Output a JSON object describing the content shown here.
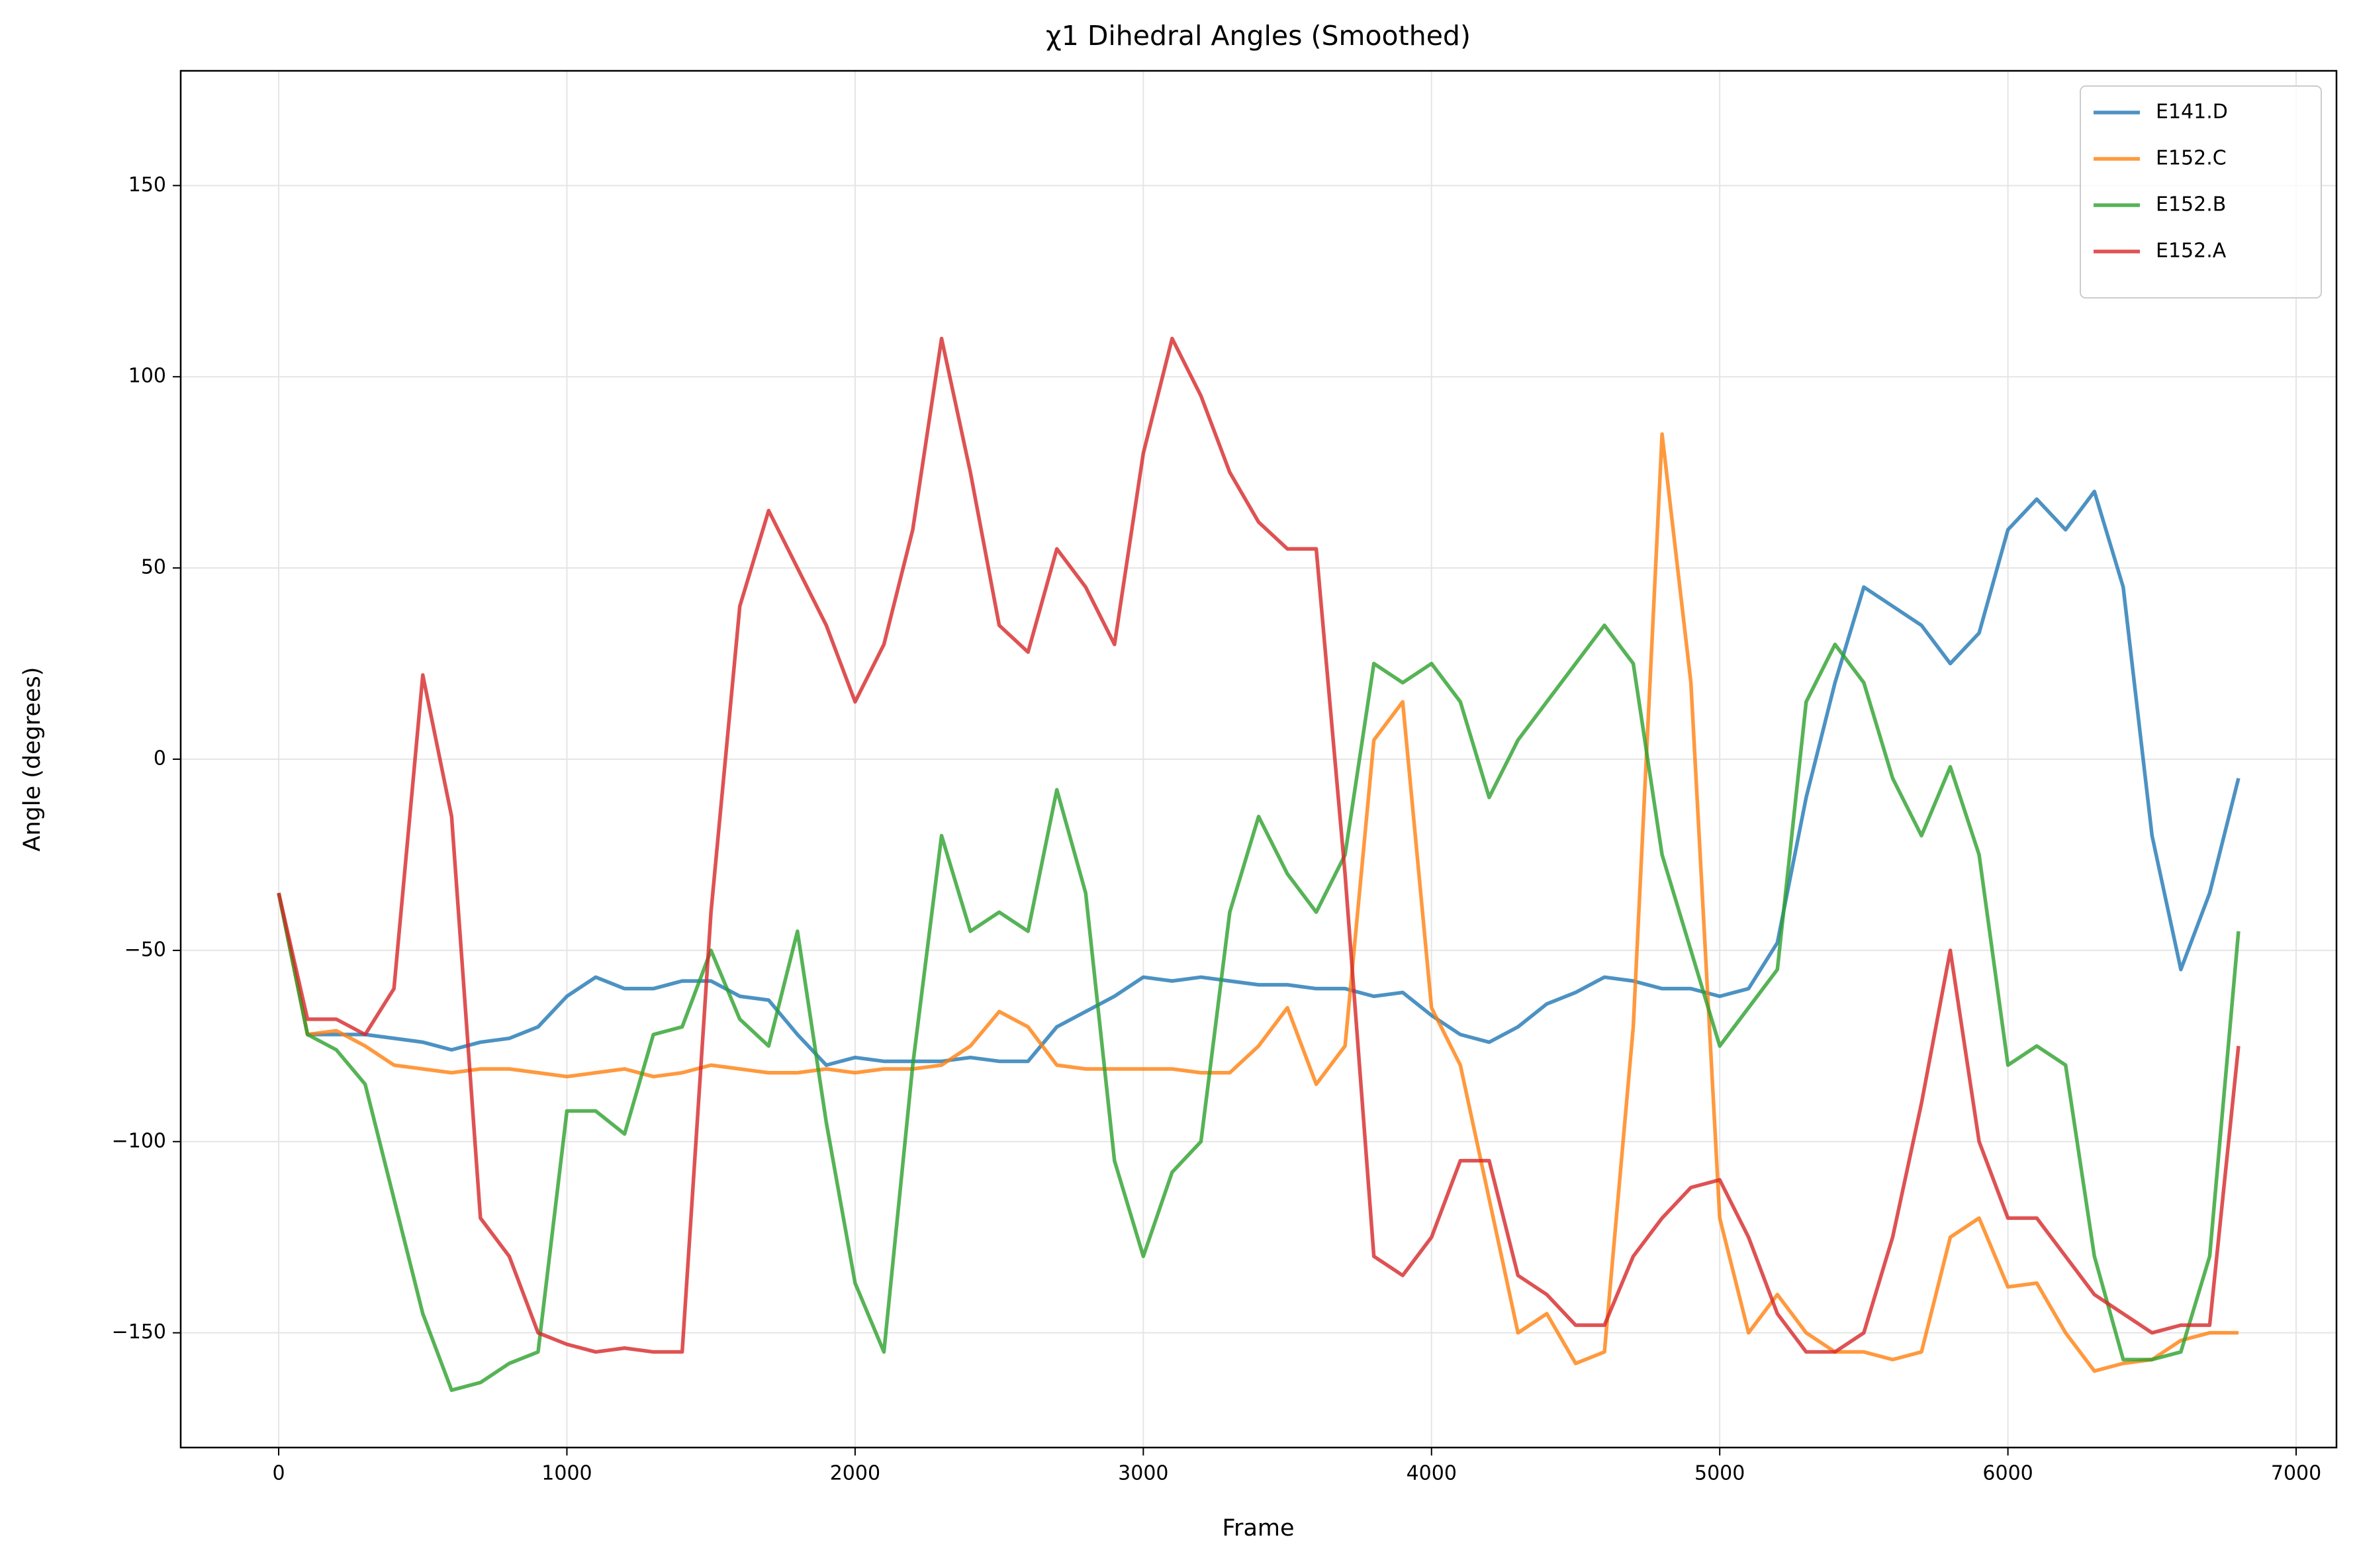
{
  "chart_data": {
    "type": "line",
    "title": "χ1 Dihedral Angles (Smoothed)",
    "x_label": "Frame",
    "y_label": "Angle (degrees)",
    "x": [
      0,
      100,
      200,
      300,
      400,
      500,
      600,
      700,
      800,
      900,
      1000,
      1100,
      1200,
      1300,
      1400,
      1500,
      1600,
      1700,
      1800,
      1900,
      2000,
      2100,
      2200,
      2300,
      2400,
      2500,
      2600,
      2700,
      2800,
      2900,
      3000,
      3100,
      3200,
      3300,
      3400,
      3500,
      3600,
      3700,
      3800,
      3900,
      4000,
      4100,
      4200,
      4300,
      4400,
      4500,
      4600,
      4700,
      4800,
      4900,
      5000,
      5100,
      5200,
      5300,
      5400,
      5500,
      5600,
      5700,
      5800,
      5900,
      6000,
      6100,
      6200,
      6300,
      6400,
      6500,
      6600,
      6700,
      6800
    ],
    "series": [
      {
        "name": "E141.D",
        "color": "#1f77b4",
        "values": [
          -35,
          -72,
          -72,
          -72,
          -73,
          -74,
          -76,
          -74,
          -73,
          -70,
          -62,
          -57,
          -60,
          -60,
          -58,
          -58,
          -62,
          -63,
          -72,
          -80,
          -78,
          -79,
          -79,
          -79,
          -78,
          -79,
          -79,
          -70,
          -66,
          -62,
          -57,
          -58,
          -57,
          -58,
          -59,
          -59,
          -60,
          -60,
          -62,
          -61,
          -67,
          -72,
          -74,
          -70,
          -64,
          -61,
          -57,
          -58,
          -60,
          -60,
          -62,
          -60,
          -48,
          -10,
          20,
          45,
          40,
          35,
          25,
          33,
          60,
          68,
          60,
          70,
          45,
          -20,
          -55,
          -35,
          -5
        ]
      },
      {
        "name": "E152.C",
        "color": "#ff7f0e",
        "values": [
          -35,
          -72,
          -71,
          -75,
          -80,
          -81,
          -82,
          -81,
          -81,
          -82,
          -83,
          -82,
          -81,
          -83,
          -82,
          -80,
          -81,
          -82,
          -82,
          -81,
          -82,
          -81,
          -81,
          -80,
          -75,
          -66,
          -70,
          -80,
          -81,
          -81,
          -81,
          -81,
          -82,
          -82,
          -75,
          -65,
          -85,
          -75,
          5,
          15,
          -65,
          -80,
          -115,
          -150,
          -145,
          -158,
          -155,
          -70,
          85,
          20,
          -120,
          -150,
          -140,
          -150,
          -155,
          -155,
          -157,
          -155,
          -125,
          -120,
          -138,
          -137,
          -150,
          -160,
          -158,
          -157,
          -152,
          -150,
          -150
        ]
      },
      {
        "name": "E152.B",
        "color": "#2ca02c",
        "values": [
          -35,
          -72,
          -76,
          -85,
          -115,
          -145,
          -165,
          -163,
          -158,
          -155,
          -92,
          -92,
          -98,
          -72,
          -70,
          -50,
          -68,
          -75,
          -45,
          -95,
          -137,
          -155,
          -80,
          -20,
          -45,
          -40,
          -45,
          -8,
          -35,
          -105,
          -130,
          -108,
          -100,
          -40,
          -15,
          -30,
          -40,
          -25,
          25,
          20,
          25,
          15,
          -10,
          5,
          15,
          25,
          35,
          25,
          -25,
          -50,
          -75,
          -65,
          -55,
          15,
          30,
          20,
          -5,
          -20,
          -2,
          -25,
          -80,
          -75,
          -80,
          -130,
          -157,
          -157,
          -155,
          -130,
          -45
        ]
      },
      {
        "name": "E152.A",
        "color": "#d62728",
        "values": [
          -35,
          -68,
          -68,
          -72,
          -60,
          22,
          -15,
          -120,
          -130,
          -150,
          -153,
          -155,
          -154,
          -155,
          -155,
          -40,
          40,
          65,
          50,
          35,
          15,
          30,
          60,
          110,
          75,
          35,
          28,
          55,
          45,
          30,
          80,
          110,
          95,
          75,
          62,
          55,
          55,
          -30,
          -130,
          -135,
          -125,
          -105,
          -105,
          -135,
          -140,
          -148,
          -148,
          -130,
          -120,
          -112,
          -110,
          -125,
          -145,
          -155,
          -155,
          -150,
          -125,
          -90,
          -50,
          -100,
          -120,
          -120,
          -130,
          -140,
          -145,
          -150,
          -148,
          -148,
          -75
        ]
      }
    ],
    "xlim": [
      -340,
      7140
    ],
    "ylim": [
      -180,
      180
    ],
    "xticks": [
      0,
      1000,
      2000,
      3000,
      4000,
      5000,
      6000,
      7000
    ],
    "yticks": [
      {
        "value": -150,
        "label": "−150"
      },
      {
        "value": -100,
        "label": "−100"
      },
      {
        "value": -50,
        "label": "−50"
      },
      0,
      50,
      100,
      150
    ],
    "grid": true,
    "legend": "upper-right"
  }
}
